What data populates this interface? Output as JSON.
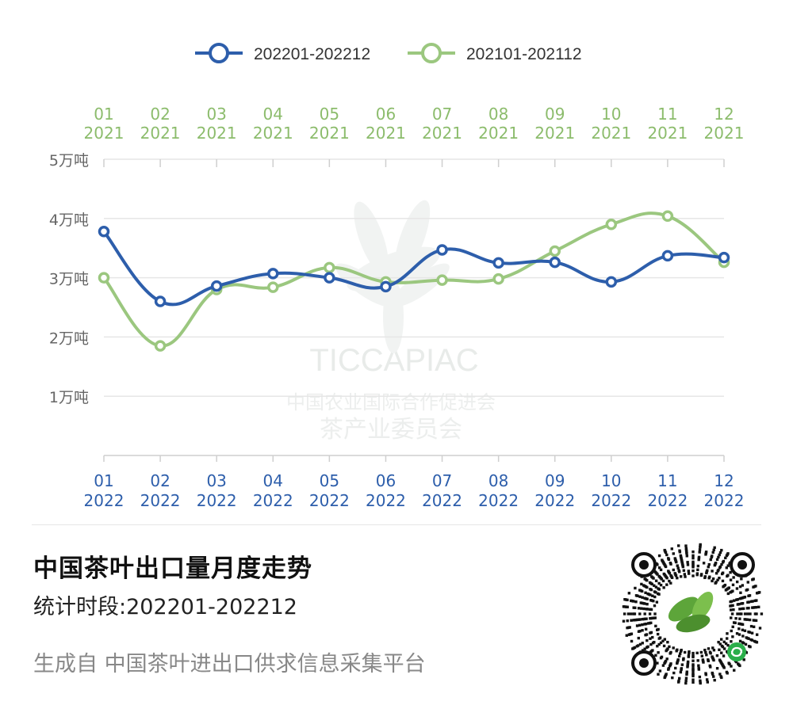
{
  "colors": {
    "series_2022": "#2d5eab",
    "series_2021": "#9bc77f",
    "axis_text_2022": "#2d5eab",
    "axis_text_2021": "#8cbc6c",
    "grid": "#e6e6e6",
    "ytick_text": "#666666"
  },
  "watermark": {
    "text1": "TICCAPIAC",
    "text2": "中国农业国际合作促进会",
    "text3": "茶产业委员会"
  },
  "chart_data": {
    "type": "line",
    "legend": [
      "202201-202212",
      "202101-202112"
    ],
    "legend_position": "top-center",
    "x_bottom": {
      "months": [
        "01",
        "02",
        "03",
        "04",
        "05",
        "06",
        "07",
        "08",
        "09",
        "10",
        "11",
        "12"
      ],
      "year": "2022"
    },
    "x_top": {
      "months": [
        "01",
        "02",
        "03",
        "04",
        "05",
        "06",
        "07",
        "08",
        "09",
        "10",
        "11",
        "12"
      ],
      "year": "2021"
    },
    "y_ticks": [
      "1万吨",
      "2万吨",
      "3万吨",
      "4万吨",
      "5万吨"
    ],
    "ylim": [
      0,
      5
    ],
    "grid": true,
    "series": [
      {
        "name": "202201-202212",
        "values": [
          3.78,
          2.6,
          2.86,
          3.07,
          3.0,
          2.85,
          3.47,
          3.25,
          3.26,
          2.93,
          3.37,
          3.34
        ]
      },
      {
        "name": "202101-202112",
        "values": [
          3.0,
          1.85,
          2.8,
          2.84,
          3.17,
          2.93,
          2.96,
          2.98,
          3.45,
          3.9,
          4.04,
          3.26
        ]
      }
    ]
  },
  "footer": {
    "title": "中国茶叶出口量月度走势",
    "subtitle": "统计时段:202201-202212",
    "source": "生成自 中国茶叶进出口供求信息采集平台"
  }
}
